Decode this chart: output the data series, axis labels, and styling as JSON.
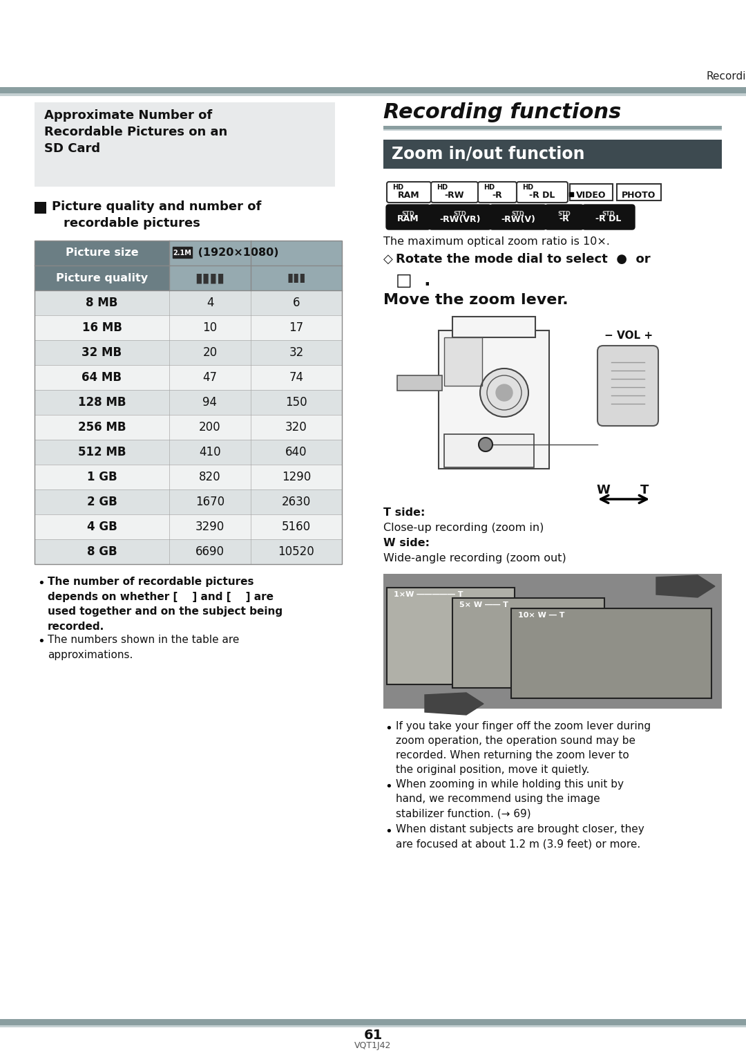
{
  "page_bg": "#ffffff",
  "top_bar_color1": "#8a9ea0",
  "top_bar_color2": "#c5d0d2",
  "recording_label": "Recording",
  "section_title": "Recording functions",
  "title_underline_color": "#8a9ea0",
  "section_header": "Zoom in/out function",
  "section_header_bg": "#3d4a50",
  "section_header_color": "#ffffff",
  "left_box_title_l1": "Approximate Number of",
  "left_box_title_l2": "Recordable Pictures on an",
  "left_box_title_l3": "SD Card",
  "left_box_bg": "#e8eaeb",
  "table_header_bg": "#6b7e84",
  "table_header_color": "#ffffff",
  "table_subheader_bg": "#96aab0",
  "table_row_dark": "#dde2e3",
  "table_row_light": "#f0f2f2",
  "table_sizes": [
    "8 MB",
    "16 MB",
    "32 MB",
    "64 MB",
    "128 MB",
    "256 MB",
    "512 MB",
    "1 GB",
    "2 GB",
    "4 GB",
    "8 GB"
  ],
  "table_col1": [
    4,
    10,
    20,
    47,
    94,
    200,
    410,
    820,
    1670,
    3290,
    6690
  ],
  "table_col2": [
    6,
    17,
    32,
    74,
    150,
    320,
    640,
    1290,
    2630,
    5160,
    10520
  ],
  "max_optical": "The maximum optical zoom ratio is 10×.",
  "t_side_label": "T side:",
  "t_side_desc": "Close-up recording (zoom in)",
  "w_side_label": "W side:",
  "w_side_desc": "Wide-angle recording (zoom out)",
  "bullet1": "If you take your finger off the zoom lever during\nzoom operation, the operation sound may be\nrecorded. When returning the zoom lever to\nthe original position, move it quietly.",
  "bullet2": "When zooming in while holding this unit by\nhand, we recommend using the image\nstabilizer function. (→ 69)",
  "bullet3": "When distant subjects are brought closer, they\nare focused at about 1.2 m (3.9 feet) or more.",
  "page_number": "61",
  "page_code": "VQT1J42",
  "bottom_bar_color1": "#8a9ea0",
  "bottom_bar_color2": "#c5d0d2",
  "pw": 1080,
  "ph": 1526
}
